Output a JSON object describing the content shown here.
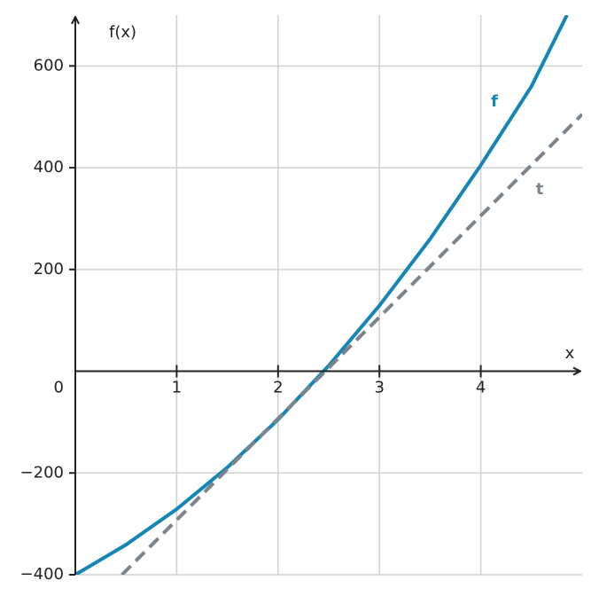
{
  "chart_data": {
    "type": "line",
    "x_label": "x",
    "y_label": "f(x)",
    "xlim": [
      0,
      5
    ],
    "ylim": [
      -400,
      700
    ],
    "xticks": [
      1,
      2,
      3,
      4
    ],
    "yticks": [
      {
        "value": -400,
        "label": "−400"
      },
      {
        "value": -200,
        "label": "−200"
      },
      0,
      200,
      400,
      600
    ],
    "grid": true,
    "series": [
      {
        "name": "f",
        "color": "#1386b5",
        "dashed": false,
        "x": [
          0,
          0.5,
          1,
          1.5,
          2,
          2.5,
          3,
          3.5,
          4,
          4.5,
          4.85
        ],
        "values": [
          -400,
          -341,
          -271,
          -189,
          -95,
          11,
          129,
          260,
          405,
          560,
          700
        ]
      },
      {
        "name": "t",
        "color": "#7b848d",
        "dashed": true,
        "x": [
          0.46,
          5
        ],
        "values": [
          -400,
          505
        ]
      }
    ]
  }
}
